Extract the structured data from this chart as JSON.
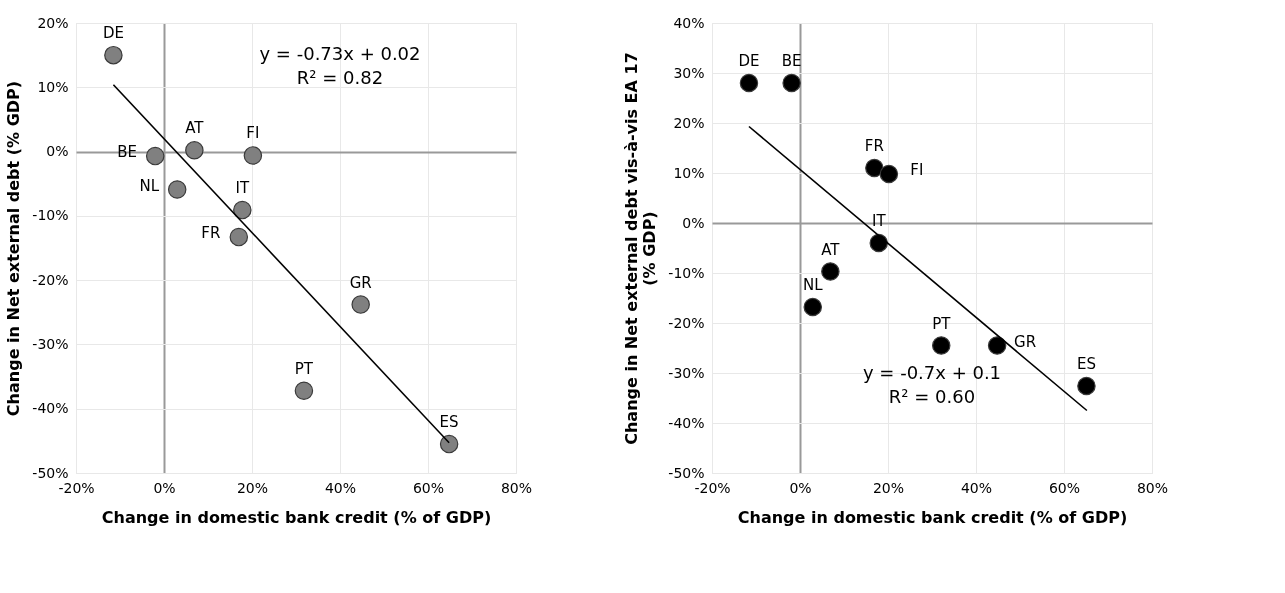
{
  "chart_data": [
    {
      "type": "scatter",
      "xlabel": "Change in domestic bank credit (% of GDP)",
      "ylabel": "Change in Net external debt (% GDP)",
      "xlim": [
        -20,
        80
      ],
      "ylim": [
        -50,
        20
      ],
      "xticks": [
        {
          "value": -20,
          "label": "-20%"
        },
        {
          "value": 0,
          "label": "0%"
        },
        {
          "value": 20,
          "label": "20%"
        },
        {
          "value": 40,
          "label": "40%"
        },
        {
          "value": 60,
          "label": "60%"
        },
        {
          "value": 80,
          "label": "80%"
        }
      ],
      "yticks": [
        {
          "value": -50,
          "label": "-50%"
        },
        {
          "value": -40,
          "label": "-40%"
        },
        {
          "value": -30,
          "label": "-30%"
        },
        {
          "value": -20,
          "label": "-20%"
        },
        {
          "value": -10,
          "label": "-10%"
        },
        {
          "value": 0,
          "label": "0%"
        },
        {
          "value": 10,
          "label": "10%"
        },
        {
          "value": 20,
          "label": "20%"
        }
      ],
      "grid": true,
      "series": [
        {
          "marker": "circle",
          "color": "#808080",
          "x": [
            -11.5,
            -2.0,
            6.9,
            20.2,
            3.0,
            17.8,
            17.0,
            44.7,
            31.8,
            64.8
          ],
          "values": [
            15.0,
            -0.7,
            0.2,
            -0.6,
            -5.9,
            -9.1,
            -13.3,
            -23.8,
            -37.2,
            -45.5
          ]
        },
        {
          "type": "line",
          "color": "#000000",
          "x": [
            -11.5,
            64.8
          ],
          "values": [
            10.4,
            -45.3
          ]
        }
      ],
      "annotations": [
        {
          "text": "DE",
          "x": -11.5,
          "y": 15.0
        },
        {
          "text": "BE",
          "x": -2.0,
          "y": -0.7
        },
        {
          "text": "AT",
          "x": 6.9,
          "y": 0.2
        },
        {
          "text": "FI",
          "x": 20.2,
          "y": -0.6
        },
        {
          "text": "NL",
          "x": 3.0,
          "y": -5.9
        },
        {
          "text": "IT",
          "x": 17.8,
          "y": -9.1
        },
        {
          "text": "FR",
          "x": 17.0,
          "y": -13.3
        },
        {
          "text": "GR",
          "x": 44.7,
          "y": -23.8
        },
        {
          "text": "PT",
          "x": 31.8,
          "y": -37.2
        },
        {
          "text": "ES",
          "x": 64.8,
          "y": -45.5
        },
        "y = -0.73x + 0.02\nR² = 0.82"
      ]
    },
    {
      "type": "scatter",
      "xlabel": "Change in domestic bank credit (% of GDP)",
      "ylabel": "Change in Net external debt vis-à-vis EA 17\n(% GDP)",
      "xlim": [
        -20,
        80
      ],
      "ylim": [
        -50,
        40
      ],
      "xticks": [
        {
          "value": -20,
          "label": "-20%"
        },
        {
          "value": 0,
          "label": "0%"
        },
        {
          "value": 20,
          "label": "20%"
        },
        {
          "value": 40,
          "label": "40%"
        },
        {
          "value": 60,
          "label": "60%"
        },
        {
          "value": 80,
          "label": "80%"
        }
      ],
      "yticks": [
        {
          "value": -50,
          "label": "-50%"
        },
        {
          "value": -40,
          "label": "-40%"
        },
        {
          "value": -30,
          "label": "-30%"
        },
        {
          "value": -20,
          "label": "-20%"
        },
        {
          "value": -10,
          "label": "-10%"
        },
        {
          "value": 0,
          "label": "0%"
        },
        {
          "value": 10,
          "label": "10%"
        },
        {
          "value": 20,
          "label": "20%"
        },
        {
          "value": 30,
          "label": "30%"
        },
        {
          "value": 40,
          "label": "40%"
        }
      ],
      "grid": true,
      "series": [
        {
          "marker": "circle",
          "color": "#000000",
          "x": [
            -11.6,
            -1.9,
            16.9,
            20.2,
            17.9,
            6.9,
            2.9,
            32.1,
            44.8,
            65.1
          ],
          "values": [
            28.0,
            28.0,
            11.0,
            9.8,
            -4.0,
            -9.7,
            -16.8,
            -24.5,
            -24.5,
            -32.6
          ]
        },
        {
          "type": "line",
          "color": "#000000",
          "x": [
            -11.6,
            65.2
          ],
          "values": [
            19.3,
            -37.5
          ]
        }
      ],
      "annotations": [
        {
          "text": "DE",
          "x": -11.6,
          "y": 28.0
        },
        {
          "text": "BE",
          "x": -1.9,
          "y": 28.0
        },
        {
          "text": "FR",
          "x": 16.9,
          "y": 11.0
        },
        {
          "text": "FI",
          "x": 20.2,
          "y": 9.8
        },
        {
          "text": "IT",
          "x": 17.9,
          "y": -4.0
        },
        {
          "text": "AT",
          "x": 6.9,
          "y": -9.7
        },
        {
          "text": "NL",
          "x": 2.9,
          "y": -16.8
        },
        {
          "text": "PT",
          "x": 32.1,
          "y": -24.5
        },
        {
          "text": "GR",
          "x": 44.8,
          "y": -24.5
        },
        {
          "text": "ES",
          "x": 65.1,
          "y": -32.6
        },
        "y = -0.7x + 0.1\nR² = 0.60"
      ]
    }
  ]
}
